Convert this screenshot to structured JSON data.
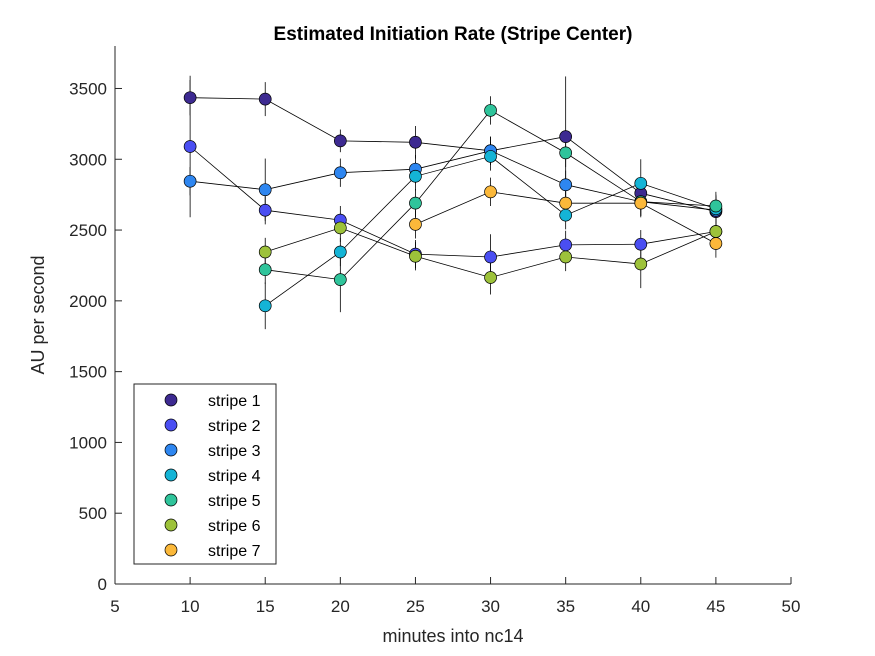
{
  "chart_data": {
    "type": "scatter",
    "title": "Estimated Initiation Rate (Stripe Center)",
    "xlabel": "minutes into nc14",
    "ylabel": "AU per second",
    "xlim": [
      5,
      50
    ],
    "ylim": [
      0,
      3800
    ],
    "xticks": [
      5,
      10,
      15,
      20,
      25,
      30,
      35,
      40,
      45,
      50
    ],
    "yticks": [
      0,
      500,
      1000,
      1500,
      2000,
      2500,
      3000,
      3500
    ],
    "grid": false,
    "legend_position": "bottom-left",
    "series": [
      {
        "name": "stripe 1",
        "color": "#3d2a91",
        "points": [
          {
            "x": 10,
            "y": 3435,
            "err": 125
          },
          {
            "x": 15,
            "y": 3425,
            "err": 120
          },
          {
            "x": 20,
            "y": 3130,
            "err": 80
          },
          {
            "x": 25,
            "y": 3120,
            "err": 115
          },
          {
            "x": 30,
            "y": 3060,
            "err": 100
          },
          {
            "x": 35,
            "y": 3160,
            "err": 425
          },
          {
            "x": 40,
            "y": 2760,
            "err": 100
          },
          {
            "x": 45,
            "y": 2630,
            "err": 100
          }
        ]
      },
      {
        "name": "stripe 2",
        "color": "#4a4ef2",
        "points": [
          {
            "x": 10,
            "y": 3090,
            "err": 500
          },
          {
            "x": 15,
            "y": 2640,
            "err": 100
          },
          {
            "x": 20,
            "y": 2570,
            "err": 100
          },
          {
            "x": 25,
            "y": 2330,
            "err": 100
          },
          {
            "x": 30,
            "y": 2310,
            "err": 160
          },
          {
            "x": 35,
            "y": 2395,
            "err": 100
          },
          {
            "x": 40,
            "y": 2400,
            "err": 100
          },
          {
            "x": 45,
            "y": 2490,
            "err": 100
          }
        ]
      },
      {
        "name": "stripe 3",
        "color": "#2e86f0",
        "points": [
          {
            "x": 10,
            "y": 2845,
            "err": 100
          },
          {
            "x": 15,
            "y": 2785,
            "err": 220
          },
          {
            "x": 20,
            "y": 2905,
            "err": 100
          },
          {
            "x": 25,
            "y": 2930,
            "err": 100
          },
          {
            "x": 30,
            "y": 3060,
            "err": 100
          },
          {
            "x": 35,
            "y": 2820,
            "err": 100
          },
          {
            "x": 40,
            "y": 2700,
            "err": 100
          },
          {
            "x": 45,
            "y": 2640,
            "err": 100
          }
        ]
      },
      {
        "name": "stripe 4",
        "color": "#14b4d6",
        "points": [
          {
            "x": 15,
            "y": 1965,
            "err": 165
          },
          {
            "x": 20,
            "y": 2345,
            "err": 100
          },
          {
            "x": 25,
            "y": 2880,
            "err": 100
          },
          {
            "x": 30,
            "y": 3020,
            "err": 100
          },
          {
            "x": 35,
            "y": 2605,
            "err": 100
          },
          {
            "x": 40,
            "y": 2830,
            "err": 170
          },
          {
            "x": 45,
            "y": 2650,
            "err": 100
          }
        ]
      },
      {
        "name": "stripe 5",
        "color": "#2fc49b",
        "points": [
          {
            "x": 15,
            "y": 2220,
            "err": 100
          },
          {
            "x": 20,
            "y": 2150,
            "err": 230
          },
          {
            "x": 25,
            "y": 2690,
            "err": 100
          },
          {
            "x": 30,
            "y": 3345,
            "err": 100
          },
          {
            "x": 35,
            "y": 3045,
            "err": 100
          },
          {
            "x": 40,
            "y": 2700,
            "err": 100
          },
          {
            "x": 45,
            "y": 2670,
            "err": 100
          }
        ]
      },
      {
        "name": "stripe 6",
        "color": "#9dc23a",
        "points": [
          {
            "x": 15,
            "y": 2345,
            "err": 100
          },
          {
            "x": 20,
            "y": 2515,
            "err": 100
          },
          {
            "x": 25,
            "y": 2315,
            "err": 100
          },
          {
            "x": 30,
            "y": 2165,
            "err": 120
          },
          {
            "x": 35,
            "y": 2310,
            "err": 100
          },
          {
            "x": 40,
            "y": 2260,
            "err": 170
          },
          {
            "x": 45,
            "y": 2490,
            "err": 100
          }
        ]
      },
      {
        "name": "stripe 7",
        "color": "#fbb83a",
        "points": [
          {
            "x": 25,
            "y": 2540,
            "err": 100
          },
          {
            "x": 30,
            "y": 2770,
            "err": 100
          },
          {
            "x": 35,
            "y": 2690,
            "err": 100
          },
          {
            "x": 40,
            "y": 2690,
            "err": 100
          },
          {
            "x": 45,
            "y": 2405,
            "err": 100
          }
        ]
      }
    ]
  }
}
